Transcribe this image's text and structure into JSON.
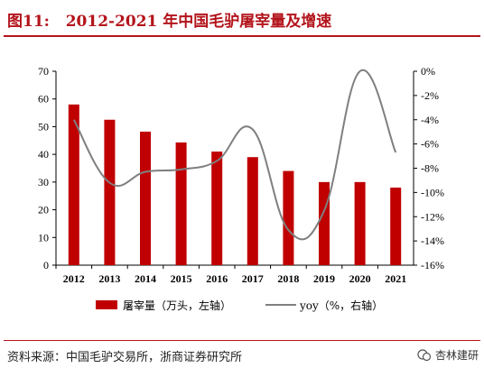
{
  "figure_label": "图11:",
  "title": "2012-2021 年中国毛驴屠宰量及增速",
  "source": "资料来源：中国毛驴交易所，浙商证券研究所",
  "watermark": "杏林建研",
  "colors": {
    "bar": "#c00000",
    "line": "#7f7f7f",
    "title": "#b3141b"
  },
  "chart_data": {
    "type": "bar",
    "categories": [
      "2012",
      "2013",
      "2014",
      "2015",
      "2016",
      "2017",
      "2018",
      "2019",
      "2020",
      "2021"
    ],
    "series": [
      {
        "name": "屠宰量（万头，左轴）",
        "type": "bar",
        "axis": "left",
        "values": [
          58,
          52.5,
          48.2,
          44.3,
          41,
          39,
          34,
          30,
          30,
          28
        ]
      },
      {
        "name": "yoy（%，右轴）",
        "type": "line",
        "axis": "right",
        "values": [
          -4.0,
          -9.2,
          -8.3,
          -8.1,
          -7.4,
          -4.8,
          -13.1,
          -11.5,
          0.0,
          -6.7
        ]
      }
    ],
    "left_axis": {
      "min": 0,
      "max": 70,
      "ticks": [
        "0",
        "10",
        "20",
        "30",
        "40",
        "50",
        "60",
        "70"
      ]
    },
    "right_axis": {
      "min": -16,
      "max": 0,
      "ticks": [
        "0%",
        "-2%",
        "-4%",
        "-6%",
        "-8%",
        "-10%",
        "-12%",
        "-14%",
        "-16%"
      ]
    },
    "legend": {
      "position": "bottom",
      "bar_label": "屠宰量（万头，左轴）",
      "line_label": "yoy（%，右轴）"
    },
    "grid": false
  }
}
